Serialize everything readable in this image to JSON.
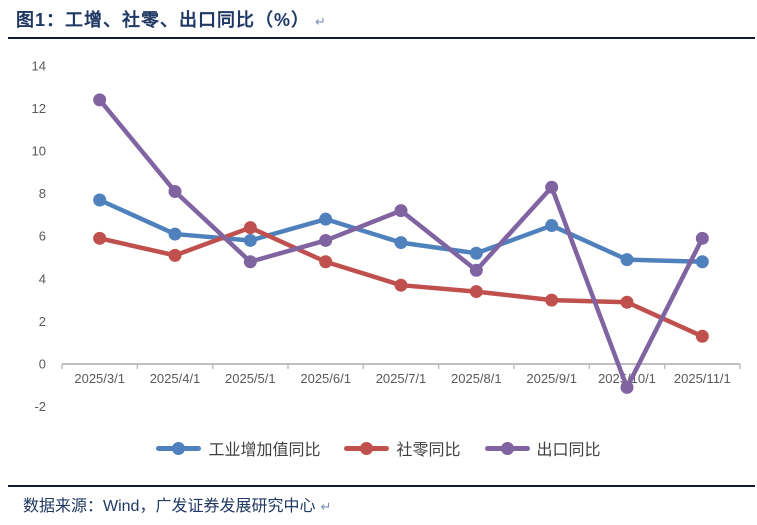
{
  "figure": {
    "label": "图1",
    "title": "图1：工增、社零、出口同比（%）",
    "paragraph_mark": "↵",
    "source": "数据来源：Wind，广发证券发展研究中心"
  },
  "chart_data": {
    "type": "line",
    "title": "工增、社零、出口同比（%）",
    "xlabel": "",
    "ylabel": "",
    "categories": [
      "2025/3/1",
      "2025/4/1",
      "2025/5/1",
      "2025/6/1",
      "2025/7/1",
      "2025/8/1",
      "2025/9/1",
      "2025/10/1",
      "2025/11/1"
    ],
    "series": [
      {
        "name": "工业增加值同比",
        "color": "#4F81BD",
        "values": [
          7.7,
          6.1,
          5.8,
          6.8,
          5.7,
          5.2,
          6.5,
          4.9,
          4.8
        ]
      },
      {
        "name": "社零同比",
        "color": "#C0504D",
        "values": [
          5.9,
          5.1,
          6.4,
          4.8,
          3.7,
          3.4,
          3.0,
          2.9,
          1.3
        ]
      },
      {
        "name": "出口同比",
        "color": "#8064A2",
        "values": [
          12.4,
          8.1,
          4.8,
          5.8,
          7.2,
          4.4,
          8.3,
          -1.1,
          5.9
        ]
      }
    ],
    "ylim": [
      -2,
      14
    ],
    "ytick_step": 2,
    "grid": false,
    "legend_position": "bottom",
    "axis_line_color": "#BFBFBF",
    "axis_text_color": "#595959"
  }
}
